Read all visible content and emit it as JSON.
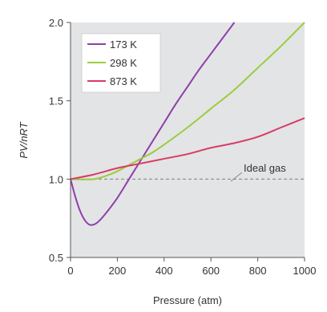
{
  "chart_data": {
    "type": "line",
    "title": "",
    "xlabel": "Pressure (atm)",
    "ylabel": "PV/nRT",
    "xlim": [
      0,
      1000
    ],
    "ylim": [
      0.5,
      2.0
    ],
    "x_ticks": [
      "0",
      "200",
      "400",
      "600",
      "800",
      "1000"
    ],
    "y_ticks": [
      "0.5",
      "1.0",
      "1.5",
      "2.0"
    ],
    "legend_position": "top-left",
    "grid": false,
    "plot_background": "#e3e4e6",
    "series": [
      {
        "name": "173 K",
        "color": "#8e3fa8",
        "x": [
          0,
          20,
          40,
          60,
          80,
          100,
          120,
          150,
          200,
          250,
          300,
          350,
          400,
          450,
          500,
          550,
          600,
          650,
          700
        ],
        "y": [
          1.0,
          0.89,
          0.8,
          0.74,
          0.71,
          0.71,
          0.73,
          0.78,
          0.88,
          1.0,
          1.12,
          1.24,
          1.36,
          1.48,
          1.59,
          1.7,
          1.8,
          1.9,
          2.0
        ]
      },
      {
        "name": "298 K",
        "color": "#9ccc3c",
        "x": [
          0,
          50,
          100,
          150,
          200,
          250,
          300,
          350,
          400,
          500,
          600,
          700,
          800,
          900,
          1000
        ],
        "y": [
          1.0,
          0.998,
          1.0,
          1.02,
          1.05,
          1.09,
          1.13,
          1.17,
          1.22,
          1.33,
          1.45,
          1.57,
          1.71,
          1.85,
          2.0
        ]
      },
      {
        "name": "873 K",
        "color": "#d93b63",
        "x": [
          0,
          100,
          200,
          300,
          400,
          500,
          600,
          700,
          800,
          900,
          1000
        ],
        "y": [
          1.0,
          1.03,
          1.07,
          1.1,
          1.13,
          1.16,
          1.2,
          1.23,
          1.27,
          1.33,
          1.39
        ]
      }
    ],
    "reference_line": {
      "label": "Ideal gas",
      "y": 1.0,
      "color": "#888888"
    }
  }
}
